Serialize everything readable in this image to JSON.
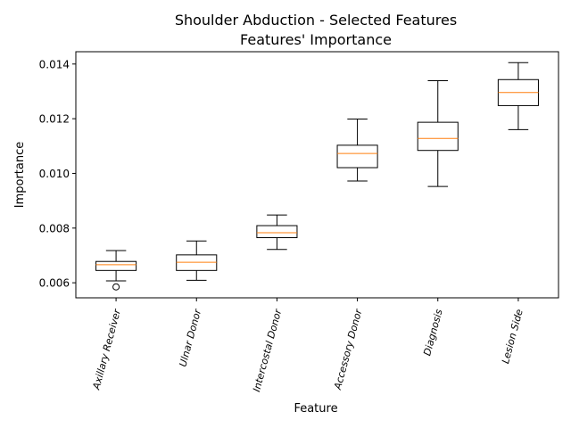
{
  "chart_data": {
    "type": "box",
    "title": "Shoulder Abduction - Selected Features",
    "subtitle": "Features' Importance",
    "xlabel": "Feature",
    "ylabel": "Importance",
    "ylim": [
      0.00545,
      0.01445
    ],
    "yticks": [
      0.006,
      0.008,
      0.01,
      0.012,
      0.014
    ],
    "ytick_labels": [
      "0.006",
      "0.008",
      "0.010",
      "0.012",
      "0.014"
    ],
    "grid": false,
    "categories": [
      "Axillary Receiver",
      "Ulnar Donor",
      "Intercostal Donor",
      "Accessory Donor",
      "Diagnosis",
      "Lesion Side"
    ],
    "boxes": [
      {
        "whisker_low": 0.00607,
        "q1": 0.00645,
        "median": 0.00666,
        "q3": 0.00678,
        "whisker_high": 0.00718,
        "outliers": [
          0.00585
        ]
      },
      {
        "whisker_low": 0.00609,
        "q1": 0.00645,
        "median": 0.00675,
        "q3": 0.00702,
        "whisker_high": 0.00753,
        "outliers": []
      },
      {
        "whisker_low": 0.00722,
        "q1": 0.00765,
        "median": 0.00783,
        "q3": 0.00809,
        "whisker_high": 0.00848,
        "outliers": []
      },
      {
        "whisker_low": 0.00972,
        "q1": 0.01021,
        "median": 0.01073,
        "q3": 0.01103,
        "whisker_high": 0.01199,
        "outliers": []
      },
      {
        "whisker_low": 0.00952,
        "q1": 0.01084,
        "median": 0.01128,
        "q3": 0.01187,
        "whisker_high": 0.01339,
        "outliers": []
      },
      {
        "whisker_low": 0.0116,
        "q1": 0.01248,
        "median": 0.01296,
        "q3": 0.01343,
        "whisker_high": 0.01405,
        "outliers": []
      }
    ],
    "colors": {
      "box": "#000000",
      "median": "#ff7f0e",
      "background": "#ffffff"
    }
  }
}
